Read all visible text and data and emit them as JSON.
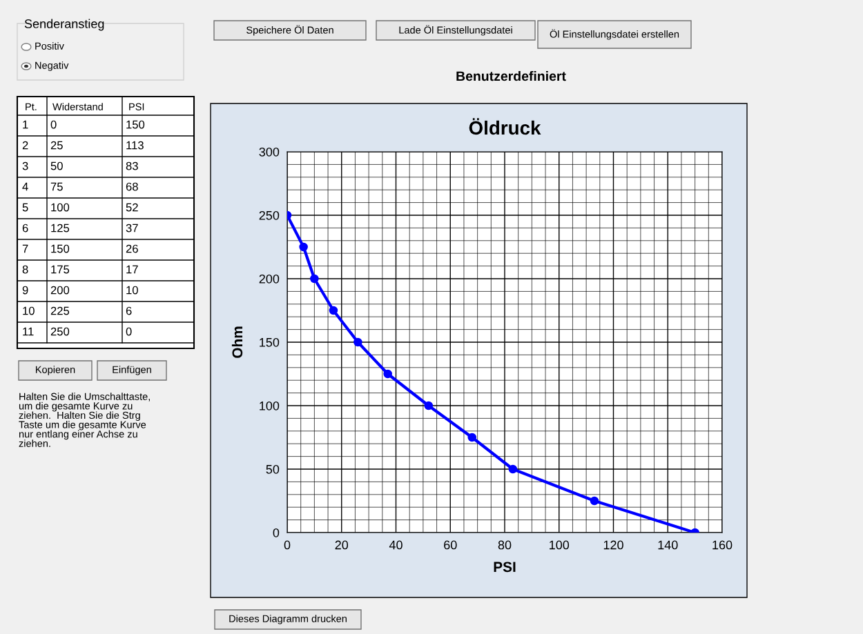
{
  "chart_data": {
    "type": "line",
    "title": "Öldruck",
    "subtitle": "Benutzerdefiniert",
    "xlabel": "PSI",
    "ylabel": "Ohm",
    "x": [
      150,
      113,
      83,
      68,
      52,
      37,
      26,
      17,
      10,
      6,
      0
    ],
    "series": [
      {
        "color": "#0000ff",
        "values": [
          0,
          25,
          50,
          75,
          100,
          125,
          150,
          175,
          200,
          225,
          250
        ]
      }
    ],
    "xlim": [
      0,
      160
    ],
    "xticks": [
      0,
      20,
      40,
      60,
      80,
      100,
      120,
      140,
      160
    ],
    "ylim": [
      0,
      300
    ],
    "yticks": [
      0,
      50,
      100,
      150,
      200,
      250,
      300
    ],
    "grid": true,
    "marker": "circle",
    "line_style": "solid",
    "annotations": [
      "Senderanstieg",
      "Positiv",
      "Negativ",
      "Speichere Öl Daten",
      "Lade Öl Einstellungsdatei",
      "Öl Einstellungsdatei erstellen",
      "Pt.",
      "Widerstand",
      "PSI",
      "Kopieren",
      "Einfügen",
      "Halten Sie die Umschalttaste,\num die gesamte Kurve zu\nziehen.  Halten Sie die Strg\nTaste um die gesamte Kurve\nnur entlang einer Achse zu\nziehen.",
      "Dieses Diagramm drucken",
      "1",
      "0",
      "150",
      "2",
      "25",
      "113",
      "3",
      "50",
      "83",
      "4",
      "75",
      "68",
      "5",
      "100",
      "52",
      "6",
      "125",
      "37",
      "7",
      "150",
      "26",
      "8",
      "175",
      "17",
      "9",
      "200",
      "10",
      "10",
      "225",
      "6",
      "11",
      "250",
      "0"
    ]
  }
}
